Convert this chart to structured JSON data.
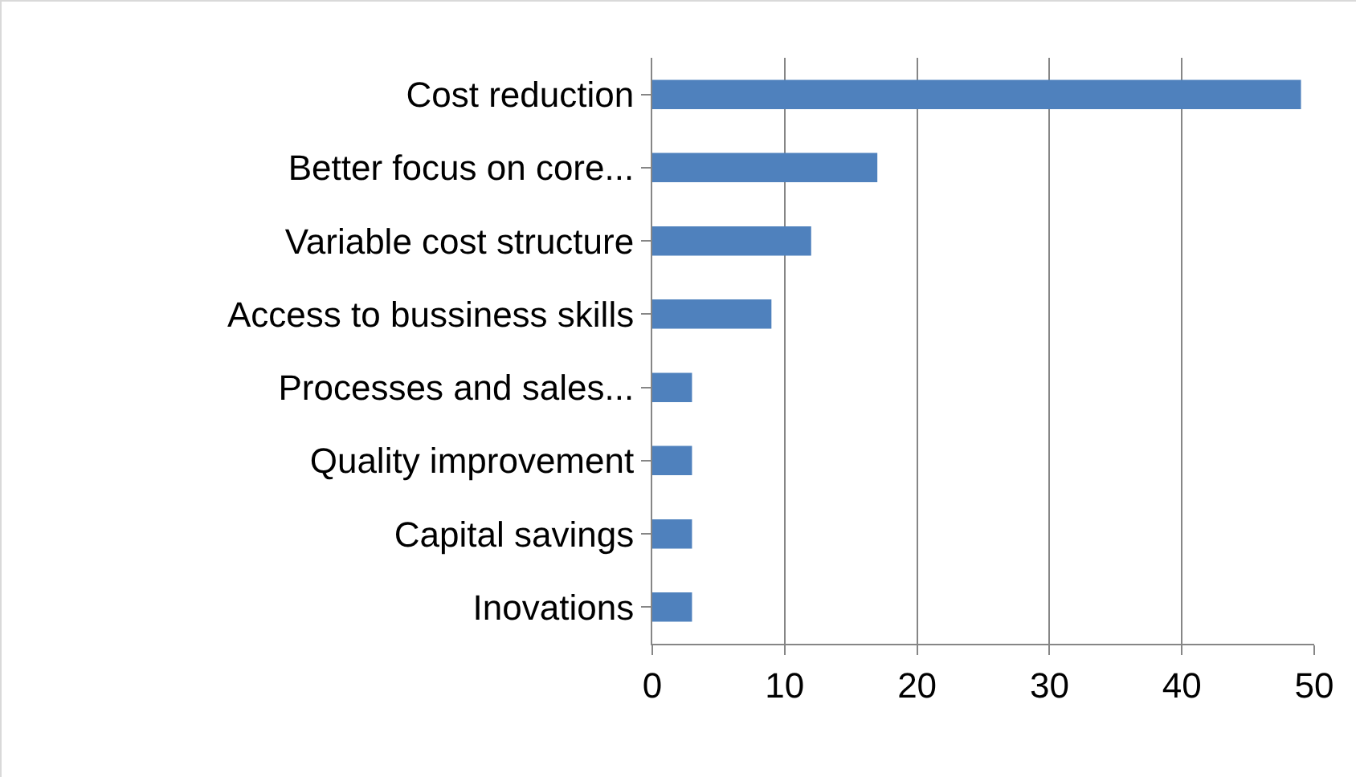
{
  "chart_data": {
    "type": "bar",
    "orientation": "horizontal",
    "categories": [
      "Cost reduction",
      "Better focus on core...",
      "Variable cost structure",
      "Access to bussiness skills",
      "Processes and sales...",
      "Quality improvement",
      "Capital savings",
      "Inovations"
    ],
    "values": [
      49,
      17,
      12,
      9,
      3,
      3,
      3,
      3
    ],
    "color": "#4f81bd",
    "xlim": [
      0,
      50
    ],
    "xticks": [
      0,
      10,
      20,
      30,
      40,
      50
    ],
    "grid": "x",
    "legend": false
  }
}
